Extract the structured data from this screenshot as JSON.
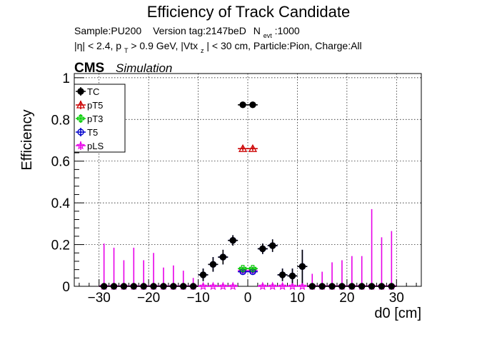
{
  "chart_data": {
    "type": "scatter",
    "title": "Efficiency of Track Candidate",
    "subtitle_line1": {
      "sample": "Sample:PU200",
      "version": "Version tag:2147beD",
      "nevt_base": "N",
      "nevt_sub": "evt",
      "nevt_value": ":1000"
    },
    "subtitle_line2": {
      "eta_cut": "|η| < 2.4, p",
      "pt_sub": "T",
      "pt_cut": " > 0.9 GeV, |Vtx",
      "vtx_sub": "z",
      "rest": "| < 30 cm, Particle:Pion, Charge:All"
    },
    "cms_label": "CMS",
    "simulation_label": "Simulation",
    "xlabel": "d0 [cm]",
    "ylabel": "Efficiency",
    "xlim": [
      -35,
      35
    ],
    "ylim": [
      0,
      1.02
    ],
    "xticks": [
      -30,
      -20,
      -10,
      0,
      10,
      20,
      30
    ],
    "yticks": [
      0,
      0.2,
      0.4,
      0.6,
      0.8,
      1
    ],
    "ytick_labels": [
      "0",
      "0.2",
      "0.4",
      "0.6",
      "0.8",
      "1"
    ],
    "grid": true,
    "legend_position": "top-left",
    "bin_halfwidth": 1,
    "series": [
      {
        "name": "TC",
        "color": "#000000",
        "marker": "filled-circle",
        "points": [
          {
            "x": -29,
            "y": 0.0,
            "err": 0.0
          },
          {
            "x": -27,
            "y": 0.0,
            "err": 0.0
          },
          {
            "x": -25,
            "y": 0.0,
            "err": 0.0
          },
          {
            "x": -23,
            "y": 0.0,
            "err": 0.0
          },
          {
            "x": -21,
            "y": 0.0,
            "err": 0.0
          },
          {
            "x": -19,
            "y": 0.0,
            "err": 0.0
          },
          {
            "x": -17,
            "y": 0.0,
            "err": 0.0
          },
          {
            "x": -15,
            "y": 0.0,
            "err": 0.0
          },
          {
            "x": -13,
            "y": 0.0,
            "err": 0.0
          },
          {
            "x": -11,
            "y": 0.0,
            "err": 0.0
          },
          {
            "x": -9,
            "y": 0.055,
            "err": 0.03
          },
          {
            "x": -7,
            "y": 0.105,
            "err": 0.035
          },
          {
            "x": -5,
            "y": 0.14,
            "err": 0.035
          },
          {
            "x": -3,
            "y": 0.22,
            "err": 0.025
          },
          {
            "x": -1,
            "y": 0.87,
            "err": 0.01
          },
          {
            "x": 1,
            "y": 0.87,
            "err": 0.01
          },
          {
            "x": 3,
            "y": 0.18,
            "err": 0.025
          },
          {
            "x": 5,
            "y": 0.195,
            "err": 0.03
          },
          {
            "x": 7,
            "y": 0.055,
            "err": 0.03
          },
          {
            "x": 9,
            "y": 0.05,
            "err": 0.035
          },
          {
            "x": 11,
            "y": 0.095,
            "err": 0.08
          },
          {
            "x": 13,
            "y": 0.0,
            "err": 0.0
          },
          {
            "x": 15,
            "y": 0.0,
            "err": 0.0
          },
          {
            "x": 17,
            "y": 0.0,
            "err": 0.0
          },
          {
            "x": 19,
            "y": 0.0,
            "err": 0.0
          },
          {
            "x": 21,
            "y": 0.0,
            "err": 0.0
          },
          {
            "x": 23,
            "y": 0.0,
            "err": 0.0
          },
          {
            "x": 25,
            "y": 0.0,
            "err": 0.0
          },
          {
            "x": 27,
            "y": 0.0,
            "err": 0.0
          },
          {
            "x": 29,
            "y": 0.0,
            "err": 0.0
          }
        ]
      },
      {
        "name": "pT5",
        "color": "#cc0000",
        "marker": "open-triangle",
        "points": [
          {
            "x": -1,
            "y": 0.66,
            "err": 0.01
          },
          {
            "x": 1,
            "y": 0.66,
            "err": 0.01
          }
        ]
      },
      {
        "name": "pT3",
        "color": "#00cc00",
        "marker": "open-cross",
        "points": [
          {
            "x": -1,
            "y": 0.085,
            "err": 0.008
          },
          {
            "x": 1,
            "y": 0.085,
            "err": 0.008
          }
        ]
      },
      {
        "name": "T5",
        "color": "#0000cc",
        "marker": "open-circle",
        "points": [
          {
            "x": -9,
            "y": 0.055,
            "err": 0.03
          },
          {
            "x": -7,
            "y": 0.105,
            "err": 0.035
          },
          {
            "x": -5,
            "y": 0.14,
            "err": 0.035
          },
          {
            "x": -3,
            "y": 0.22,
            "err": 0.025
          },
          {
            "x": -1,
            "y": 0.07,
            "err": 0.01
          },
          {
            "x": 1,
            "y": 0.07,
            "err": 0.01
          },
          {
            "x": 3,
            "y": 0.18,
            "err": 0.025
          },
          {
            "x": 5,
            "y": 0.195,
            "err": 0.03
          },
          {
            "x": 7,
            "y": 0.055,
            "err": 0.03
          },
          {
            "x": 9,
            "y": 0.05,
            "err": 0.035
          },
          {
            "x": 11,
            "y": 0.095,
            "err": 0.08
          }
        ]
      },
      {
        "name": "pLS",
        "color": "#e800e8",
        "marker": "open-star",
        "points": [
          {
            "x": -29,
            "y": 0.0,
            "err": 0.205
          },
          {
            "x": -27,
            "y": 0.0,
            "err": 0.185
          },
          {
            "x": -25,
            "y": 0.0,
            "err": 0.125
          },
          {
            "x": -23,
            "y": 0.0,
            "err": 0.185
          },
          {
            "x": -21,
            "y": 0.0,
            "err": 0.125
          },
          {
            "x": -19,
            "y": 0.0,
            "err": 0.16
          },
          {
            "x": -17,
            "y": 0.0,
            "err": 0.09
          },
          {
            "x": -15,
            "y": 0.0,
            "err": 0.1
          },
          {
            "x": -13,
            "y": 0.0,
            "err": 0.075
          },
          {
            "x": -11,
            "y": 0.0,
            "err": 0.04
          },
          {
            "x": -9,
            "y": 0.0,
            "err": 0.015
          },
          {
            "x": -7,
            "y": 0.0,
            "err": 0.01
          },
          {
            "x": -5,
            "y": 0.0,
            "err": 0.01
          },
          {
            "x": -3,
            "y": 0.0,
            "err": 0.01
          },
          {
            "x": -1,
            "y": 0.075,
            "err": 0.008
          },
          {
            "x": 1,
            "y": 0.075,
            "err": 0.008
          },
          {
            "x": 3,
            "y": 0.0,
            "err": 0.01
          },
          {
            "x": 5,
            "y": 0.0,
            "err": 0.01
          },
          {
            "x": 7,
            "y": 0.0,
            "err": 0.01
          },
          {
            "x": 9,
            "y": 0.0,
            "err": 0.01
          },
          {
            "x": 11,
            "y": 0.0,
            "err": 0.03
          },
          {
            "x": 13,
            "y": 0.0,
            "err": 0.06
          },
          {
            "x": 15,
            "y": 0.0,
            "err": 0.07
          },
          {
            "x": 17,
            "y": 0.0,
            "err": 0.115
          },
          {
            "x": 19,
            "y": 0.0,
            "err": 0.125
          },
          {
            "x": 21,
            "y": 0.0,
            "err": 0.145
          },
          {
            "x": 23,
            "y": 0.0,
            "err": 0.145
          },
          {
            "x": 25,
            "y": 0.0,
            "err": 0.37
          },
          {
            "x": 27,
            "y": 0.0,
            "err": 0.235
          },
          {
            "x": 29,
            "y": 0.0,
            "err": 0.265
          }
        ]
      }
    ]
  }
}
